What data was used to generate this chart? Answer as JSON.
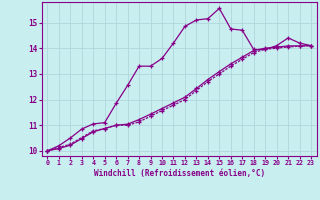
{
  "xlabel": "Windchill (Refroidissement éolien,°C)",
  "background_color": "#c8eef0",
  "grid_color": "#b0d8dc",
  "line_color": "#880088",
  "xlim": [
    -0.5,
    23.5
  ],
  "ylim": [
    9.8,
    15.8
  ],
  "xticks": [
    0,
    1,
    2,
    3,
    4,
    5,
    6,
    7,
    8,
    9,
    10,
    11,
    12,
    13,
    14,
    15,
    16,
    17,
    18,
    19,
    20,
    21,
    22,
    23
  ],
  "yticks": [
    10,
    11,
    12,
    13,
    14,
    15
  ],
  "line1_x": [
    0,
    1,
    2,
    3,
    4,
    5,
    6,
    7,
    8,
    9,
    10,
    11,
    12,
    13,
    14,
    15,
    16,
    17,
    18,
    19,
    20,
    21,
    22,
    23
  ],
  "line1_y": [
    10.0,
    10.2,
    10.5,
    10.85,
    11.05,
    11.1,
    11.85,
    12.55,
    13.3,
    13.3,
    13.6,
    14.2,
    14.85,
    15.1,
    15.15,
    15.55,
    14.75,
    14.7,
    13.95,
    13.95,
    14.1,
    14.4,
    14.2,
    14.1
  ],
  "line2_x": [
    0,
    1,
    2,
    3,
    4,
    5,
    6,
    7,
    8,
    9,
    10,
    11,
    12,
    13,
    14,
    15,
    16,
    17,
    18,
    19,
    20,
    21,
    22,
    23
  ],
  "line2_y": [
    10.0,
    10.13,
    10.26,
    10.52,
    10.78,
    10.87,
    11.0,
    11.0,
    11.13,
    11.35,
    11.57,
    11.78,
    12.0,
    12.35,
    12.7,
    13.0,
    13.3,
    13.57,
    13.83,
    13.96,
    14.0,
    14.05,
    14.08,
    14.1
  ],
  "line3_x": [
    0,
    1,
    2,
    3,
    4,
    5,
    6,
    7,
    8,
    9,
    10,
    11,
    12,
    13,
    14,
    15,
    16,
    17,
    18,
    19,
    20,
    21,
    22,
    23
  ],
  "line3_y": [
    10.0,
    10.09,
    10.22,
    10.48,
    10.74,
    10.87,
    11.0,
    11.04,
    11.22,
    11.43,
    11.65,
    11.87,
    12.09,
    12.43,
    12.78,
    13.09,
    13.39,
    13.65,
    13.91,
    14.0,
    14.04,
    14.09,
    14.09,
    14.1
  ]
}
